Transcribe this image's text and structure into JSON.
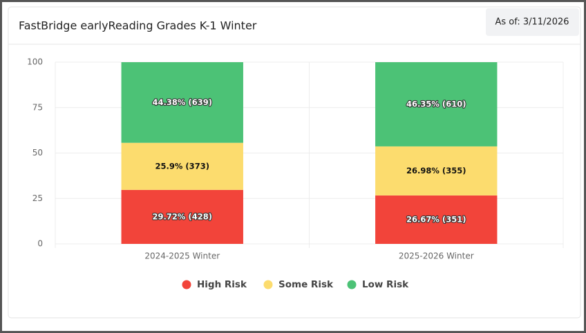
{
  "chart_data": {
    "type": "stacked_bar",
    "title": "FastBridge earlyReading Grades K-1 Winter",
    "as_of": "As of: 3/11/2026",
    "categories": [
      "2024-2025 Winter",
      "2025-2026 Winter"
    ],
    "series": [
      {
        "name": "High Risk",
        "color": "#f2443a",
        "values": [
          29.72,
          26.67
        ],
        "value_labels": [
          "29.72% (428)",
          "26.67% (351)"
        ]
      },
      {
        "name": "Some Risk",
        "color": "#fcdc6e",
        "values": [
          25.9,
          26.98
        ],
        "value_labels": [
          "25.9% (373)",
          "26.98% (355)"
        ]
      },
      {
        "name": "Low Risk",
        "color": "#4cc276",
        "values": [
          44.38,
          46.35
        ],
        "value_labels": [
          "44.38% (639)",
          "46.35% (610)"
        ]
      }
    ],
    "ylim": [
      0,
      100
    ],
    "yticks": [
      0,
      25,
      50,
      75,
      100
    ],
    "grid": true,
    "legend": "bottom"
  }
}
